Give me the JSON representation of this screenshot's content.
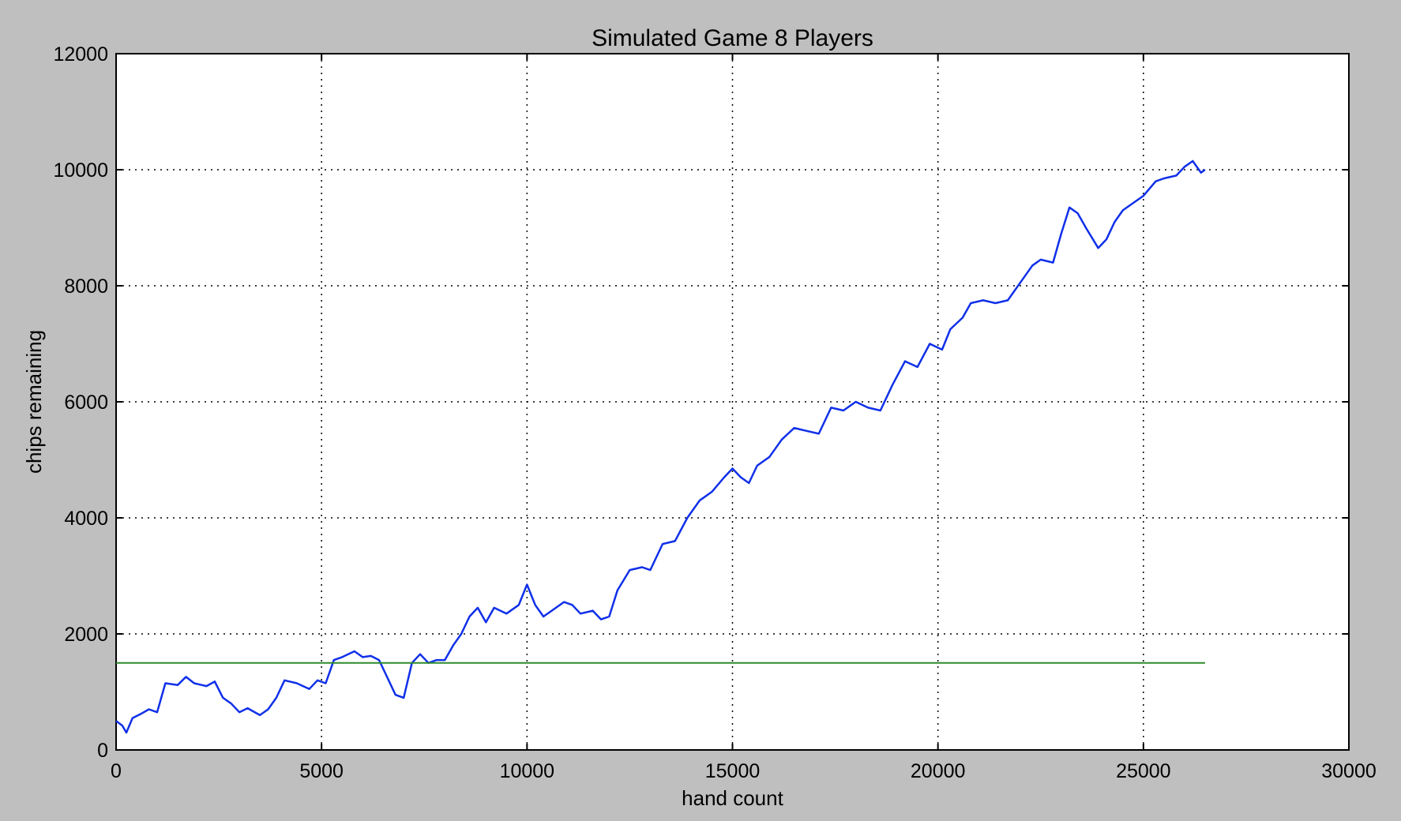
{
  "chart_data": {
    "type": "line",
    "title": "Simulated Game 8 Players",
    "xlabel": "hand count",
    "ylabel": "chips remaining",
    "xlim": [
      0,
      30000
    ],
    "ylim": [
      0,
      12000
    ],
    "xticks": [
      0,
      5000,
      10000,
      15000,
      20000,
      25000,
      30000
    ],
    "yticks": [
      0,
      2000,
      4000,
      6000,
      8000,
      10000,
      12000
    ],
    "xtick_labels": [
      "0",
      "5000",
      "10000",
      "15000",
      "20000",
      "25000",
      "30000"
    ],
    "ytick_labels": [
      "0",
      "2000",
      "4000",
      "6000",
      "8000",
      "10000",
      "12000"
    ],
    "grid": true,
    "background": "#bfbfbf",
    "plot_background": "#ffffff",
    "series": [
      {
        "color": "#1030e8",
        "points": [
          [
            0,
            500
          ],
          [
            150,
            420
          ],
          [
            250,
            300
          ],
          [
            400,
            550
          ],
          [
            600,
            620
          ],
          [
            800,
            700
          ],
          [
            1000,
            650
          ],
          [
            1200,
            1150
          ],
          [
            1500,
            1120
          ],
          [
            1700,
            1260
          ],
          [
            1900,
            1150
          ],
          [
            2200,
            1100
          ],
          [
            2400,
            1180
          ],
          [
            2600,
            900
          ],
          [
            2800,
            800
          ],
          [
            3000,
            650
          ],
          [
            3200,
            720
          ],
          [
            3500,
            600
          ],
          [
            3700,
            700
          ],
          [
            3900,
            900
          ],
          [
            4100,
            1200
          ],
          [
            4400,
            1150
          ],
          [
            4700,
            1050
          ],
          [
            4900,
            1200
          ],
          [
            5100,
            1150
          ],
          [
            5300,
            1550
          ],
          [
            5500,
            1600
          ],
          [
            5800,
            1700
          ],
          [
            6000,
            1600
          ],
          [
            6200,
            1620
          ],
          [
            6400,
            1550
          ],
          [
            6600,
            1250
          ],
          [
            6800,
            950
          ],
          [
            7000,
            900
          ],
          [
            7200,
            1500
          ],
          [
            7400,
            1650
          ],
          [
            7600,
            1500
          ],
          [
            7800,
            1550
          ],
          [
            8000,
            1550
          ],
          [
            8200,
            1800
          ],
          [
            8400,
            2000
          ],
          [
            8600,
            2300
          ],
          [
            8800,
            2450
          ],
          [
            9000,
            2200
          ],
          [
            9200,
            2450
          ],
          [
            9500,
            2350
          ],
          [
            9800,
            2500
          ],
          [
            10000,
            2850
          ],
          [
            10200,
            2500
          ],
          [
            10400,
            2300
          ],
          [
            10600,
            2400
          ],
          [
            10900,
            2550
          ],
          [
            11100,
            2500
          ],
          [
            11300,
            2350
          ],
          [
            11600,
            2400
          ],
          [
            11800,
            2250
          ],
          [
            12000,
            2300
          ],
          [
            12200,
            2750
          ],
          [
            12500,
            3100
          ],
          [
            12800,
            3150
          ],
          [
            13000,
            3100
          ],
          [
            13300,
            3550
          ],
          [
            13600,
            3600
          ],
          [
            13900,
            4000
          ],
          [
            14200,
            4300
          ],
          [
            14500,
            4450
          ],
          [
            14800,
            4700
          ],
          [
            15000,
            4850
          ],
          [
            15200,
            4700
          ],
          [
            15400,
            4600
          ],
          [
            15600,
            4900
          ],
          [
            15900,
            5050
          ],
          [
            16200,
            5350
          ],
          [
            16500,
            5550
          ],
          [
            16800,
            5500
          ],
          [
            17100,
            5450
          ],
          [
            17400,
            5900
          ],
          [
            17700,
            5850
          ],
          [
            18000,
            6000
          ],
          [
            18300,
            5900
          ],
          [
            18600,
            5850
          ],
          [
            18900,
            6300
          ],
          [
            19200,
            6700
          ],
          [
            19500,
            6600
          ],
          [
            19800,
            7000
          ],
          [
            20100,
            6900
          ],
          [
            20300,
            7250
          ],
          [
            20600,
            7450
          ],
          [
            20800,
            7700
          ],
          [
            21100,
            7750
          ],
          [
            21400,
            7700
          ],
          [
            21700,
            7750
          ],
          [
            22000,
            8050
          ],
          [
            22300,
            8350
          ],
          [
            22500,
            8450
          ],
          [
            22800,
            8400
          ],
          [
            23000,
            8900
          ],
          [
            23200,
            9350
          ],
          [
            23400,
            9250
          ],
          [
            23600,
            9000
          ],
          [
            23900,
            8650
          ],
          [
            24100,
            8800
          ],
          [
            24300,
            9100
          ],
          [
            24500,
            9300
          ],
          [
            24800,
            9450
          ],
          [
            25000,
            9550
          ],
          [
            25300,
            9800
          ],
          [
            25500,
            9850
          ],
          [
            25800,
            9900
          ],
          [
            26000,
            10050
          ],
          [
            26200,
            10150
          ],
          [
            26400,
            9950
          ],
          [
            26500,
            10000
          ]
        ]
      },
      {
        "color": "#2e8b2e",
        "points": [
          [
            0,
            1500
          ],
          [
            26500,
            1500
          ]
        ]
      }
    ]
  }
}
